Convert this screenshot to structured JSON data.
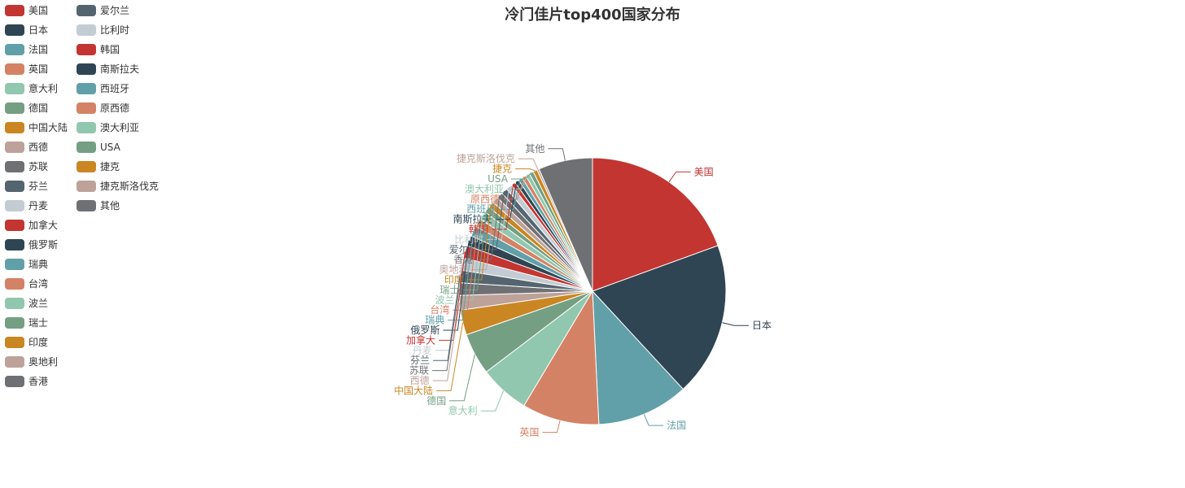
{
  "chart_data": {
    "type": "pie",
    "title": "冷门佳片top400国家分布",
    "legend_position": "top-left",
    "slices": [
      {
        "name": "美国",
        "value": 77,
        "color": "#c23531"
      },
      {
        "name": "日本",
        "value": 74,
        "color": "#2f4554"
      },
      {
        "name": "法国",
        "value": 44,
        "color": "#61a0a8"
      },
      {
        "name": "英国",
        "value": 37,
        "color": "#d48265"
      },
      {
        "name": "意大利",
        "value": 24,
        "color": "#91c7ae"
      },
      {
        "name": "德国",
        "value": 20,
        "color": "#749f83"
      },
      {
        "name": "中国大陆",
        "value": 12,
        "color": "#ca8622"
      },
      {
        "name": "西德",
        "value": 7,
        "color": "#bda29a"
      },
      {
        "name": "苏联",
        "value": 6,
        "color": "#6e7074"
      },
      {
        "name": "芬兰",
        "value": 6,
        "color": "#546570"
      },
      {
        "name": "丹麦",
        "value": 6,
        "color": "#c4ccd3"
      },
      {
        "name": "加拿大",
        "value": 6,
        "color": "#c23531"
      },
      {
        "name": "俄罗斯",
        "value": 5,
        "color": "#2f4554"
      },
      {
        "name": "瑞典",
        "value": 5,
        "color": "#61a0a8"
      },
      {
        "name": "台湾",
        "value": 4,
        "color": "#d48265"
      },
      {
        "name": "波兰",
        "value": 4,
        "color": "#91c7ae"
      },
      {
        "name": "瑞士",
        "value": 3,
        "color": "#749f83"
      },
      {
        "name": "印度",
        "value": 3,
        "color": "#ca8622"
      },
      {
        "name": "奥地利",
        "value": 3,
        "color": "#bda29a"
      },
      {
        "name": "香港",
        "value": 3,
        "color": "#6e7074"
      },
      {
        "name": "爱尔兰",
        "value": 3,
        "color": "#546570"
      },
      {
        "name": "比利时",
        "value": 3,
        "color": "#c4ccd3"
      },
      {
        "name": "韩国",
        "value": 2,
        "color": "#c23531"
      },
      {
        "name": "南斯拉夫",
        "value": 2,
        "color": "#2f4554"
      },
      {
        "name": "西班牙",
        "value": 2,
        "color": "#61a0a8"
      },
      {
        "name": "原西德",
        "value": 2,
        "color": "#d48265"
      },
      {
        "name": "澳大利亚",
        "value": 2,
        "color": "#91c7ae"
      },
      {
        "name": "USA",
        "value": 2,
        "color": "#749f83"
      },
      {
        "name": "捷克",
        "value": 2,
        "color": "#ca8622"
      },
      {
        "name": "捷克斯洛伐克",
        "value": 1,
        "color": "#bda29a"
      },
      {
        "name": "其他",
        "value": 26,
        "color": "#6e7074"
      }
    ]
  }
}
